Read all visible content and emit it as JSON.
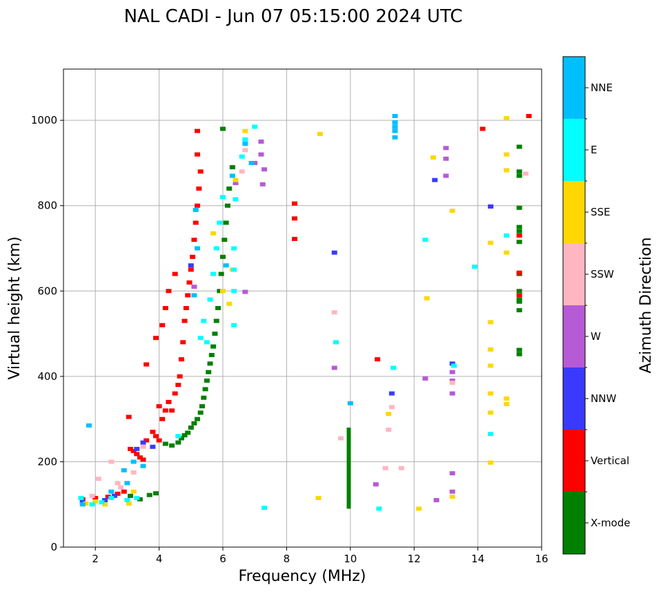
{
  "chart_data": {
    "type": "scatter",
    "title": "NAL CADI - Jun 07 05:15:00 2024 UTC",
    "xlabel": "Frequency (MHz)",
    "ylabel": "Virtual height (km)",
    "xlim": [
      1,
      16
    ],
    "ylim": [
      0,
      1120
    ],
    "xticks": [
      2,
      4,
      6,
      8,
      10,
      12,
      14,
      16
    ],
    "yticks": [
      0,
      200,
      400,
      600,
      800,
      1000
    ],
    "xtick_labels": [
      "2",
      "4",
      "6",
      "8",
      "10",
      "12",
      "14",
      "16"
    ],
    "ytick_labels": [
      "0",
      "200",
      "400",
      "600",
      "800",
      "1000"
    ],
    "grid": true,
    "colorbar": {
      "label": "Azimuth Direction",
      "categories": [
        "X-mode",
        "Vertical",
        "NNW",
        "W",
        "SSW",
        "SSE",
        "E",
        "NNE"
      ],
      "colors": [
        "#008000",
        "#ff0000",
        "#3a3aff",
        "#b65ad6",
        "#ffb6c1",
        "#ffd700",
        "#00ffff",
        "#00bfff"
      ]
    },
    "series": [
      {
        "name": "X-mode",
        "color": "#008000",
        "points": [
          [
            3.1,
            120
          ],
          [
            3.4,
            112
          ],
          [
            3.7,
            122
          ],
          [
            3.9,
            126
          ],
          [
            4.2,
            242
          ],
          [
            4.4,
            238
          ],
          [
            4.6,
            245
          ],
          [
            4.7,
            255
          ],
          [
            4.8,
            262
          ],
          [
            4.9,
            268
          ],
          [
            5.0,
            280
          ],
          [
            5.1,
            290
          ],
          [
            5.2,
            300
          ],
          [
            5.3,
            315
          ],
          [
            5.35,
            330
          ],
          [
            5.4,
            350
          ],
          [
            5.45,
            370
          ],
          [
            5.5,
            390
          ],
          [
            5.55,
            410
          ],
          [
            5.6,
            430
          ],
          [
            5.65,
            450
          ],
          [
            5.7,
            470
          ],
          [
            5.75,
            500
          ],
          [
            5.8,
            530
          ],
          [
            5.85,
            560
          ],
          [
            5.9,
            600
          ],
          [
            5.95,
            640
          ],
          [
            6.0,
            680
          ],
          [
            6.05,
            720
          ],
          [
            6.1,
            760
          ],
          [
            6.15,
            800
          ],
          [
            6.2,
            840
          ],
          [
            6.0,
            980
          ],
          [
            6.3,
            890
          ],
          [
            15.3,
            870
          ],
          [
            15.3,
            880
          ],
          [
            15.3,
            795
          ],
          [
            15.3,
            750
          ],
          [
            15.3,
            740
          ],
          [
            15.3,
            715
          ],
          [
            15.3,
            640
          ],
          [
            15.3,
            600
          ],
          [
            15.3,
            580
          ],
          [
            15.3,
            575
          ],
          [
            15.3,
            555
          ],
          [
            15.3,
            462
          ],
          [
            15.3,
            452
          ],
          [
            15.3,
            938
          ]
        ]
      },
      {
        "name": "Vertical",
        "color": "#ff0000",
        "points": [
          [
            1.6,
            112
          ],
          [
            2.0,
            115
          ],
          [
            2.4,
            118
          ],
          [
            2.7,
            125
          ],
          [
            2.9,
            130
          ],
          [
            3.05,
            305
          ],
          [
            3.1,
            230
          ],
          [
            3.2,
            225
          ],
          [
            3.3,
            218
          ],
          [
            3.4,
            210
          ],
          [
            3.5,
            205
          ],
          [
            3.6,
            250
          ],
          [
            3.8,
            270
          ],
          [
            3.9,
            260
          ],
          [
            4.0,
            250
          ],
          [
            4.0,
            330
          ],
          [
            4.1,
            300
          ],
          [
            4.2,
            320
          ],
          [
            4.3,
            340
          ],
          [
            4.4,
            320
          ],
          [
            4.5,
            360
          ],
          [
            4.6,
            380
          ],
          [
            4.65,
            400
          ],
          [
            4.7,
            440
          ],
          [
            4.75,
            480
          ],
          [
            4.8,
            530
          ],
          [
            4.85,
            560
          ],
          [
            4.9,
            590
          ],
          [
            4.95,
            620
          ],
          [
            5.0,
            650
          ],
          [
            5.05,
            680
          ],
          [
            5.1,
            720
          ],
          [
            5.15,
            760
          ],
          [
            5.2,
            800
          ],
          [
            5.25,
            840
          ],
          [
            5.3,
            880
          ],
          [
            5.2,
            920
          ],
          [
            5.2,
            975
          ],
          [
            3.9,
            490
          ],
          [
            4.1,
            520
          ],
          [
            4.2,
            560
          ],
          [
            4.3,
            600
          ],
          [
            3.6,
            428
          ],
          [
            4.5,
            640
          ],
          [
            8.25,
            805
          ],
          [
            8.25,
            770
          ],
          [
            8.25,
            722
          ],
          [
            10.85,
            440
          ],
          [
            12.7,
            110
          ],
          [
            14.15,
            980
          ],
          [
            15.6,
            1010
          ],
          [
            15.3,
            730
          ],
          [
            15.3,
            643
          ],
          [
            15.3,
            590
          ]
        ]
      },
      {
        "name": "NNW",
        "color": "#3a3aff",
        "points": [
          [
            1.6,
            105
          ],
          [
            2.3,
            110
          ],
          [
            2.6,
            120
          ],
          [
            3.3,
            230
          ],
          [
            3.5,
            245
          ],
          [
            3.8,
            235
          ],
          [
            5.0,
            660
          ],
          [
            9.5,
            690
          ],
          [
            11.3,
            360
          ],
          [
            12.65,
            860
          ],
          [
            14.4,
            798
          ],
          [
            13.2,
            430
          ]
        ]
      },
      {
        "name": "W",
        "color": "#b65ad6",
        "points": [
          [
            5.1,
            610
          ],
          [
            6.4,
            853
          ],
          [
            6.7,
            598
          ],
          [
            7.0,
            900
          ],
          [
            7.2,
            920
          ],
          [
            7.25,
            850
          ],
          [
            7.3,
            885
          ],
          [
            7.2,
            950
          ],
          [
            9.5,
            420
          ],
          [
            10.8,
            147
          ],
          [
            12.35,
            395
          ],
          [
            13.0,
            935
          ],
          [
            13.0,
            910
          ],
          [
            13.0,
            870
          ],
          [
            13.2,
            390
          ],
          [
            13.2,
            410
          ],
          [
            13.2,
            360
          ],
          [
            13.2,
            173
          ],
          [
            13.2,
            130
          ],
          [
            12.7,
            110
          ]
        ]
      },
      {
        "name": "SSW",
        "color": "#ffb6c1",
        "points": [
          [
            1.9,
            120
          ],
          [
            2.1,
            160
          ],
          [
            2.5,
            200
          ],
          [
            2.7,
            150
          ],
          [
            2.8,
            140
          ],
          [
            3.2,
            175
          ],
          [
            3.5,
            235
          ],
          [
            6.6,
            880
          ],
          [
            6.7,
            930
          ],
          [
            9.5,
            550
          ],
          [
            9.7,
            255
          ],
          [
            11.1,
            185
          ],
          [
            11.2,
            275
          ],
          [
            11.3,
            328
          ],
          [
            11.6,
            185
          ],
          [
            13.2,
            385
          ],
          [
            15.5,
            875
          ]
        ]
      },
      {
        "name": "SSE",
        "color": "#ffd700",
        "points": [
          [
            1.7,
            102
          ],
          [
            2.0,
            107
          ],
          [
            2.3,
            100
          ],
          [
            3.05,
            102
          ],
          [
            3.2,
            130
          ],
          [
            5.7,
            735
          ],
          [
            6.0,
            600
          ],
          [
            6.2,
            570
          ],
          [
            6.3,
            650
          ],
          [
            6.4,
            860
          ],
          [
            6.7,
            975
          ],
          [
            9.05,
            968
          ],
          [
            9.0,
            115
          ],
          [
            11.2,
            312
          ],
          [
            12.15,
            90
          ],
          [
            12.4,
            583
          ],
          [
            12.6,
            913
          ],
          [
            13.2,
            788
          ],
          [
            13.2,
            118
          ],
          [
            14.4,
            713
          ],
          [
            14.4,
            527
          ],
          [
            14.4,
            463
          ],
          [
            14.4,
            425
          ],
          [
            14.4,
            360
          ],
          [
            14.4,
            315
          ],
          [
            14.4,
            198
          ],
          [
            14.9,
            1005
          ],
          [
            14.9,
            920
          ],
          [
            14.9,
            883
          ],
          [
            14.9,
            690
          ],
          [
            14.9,
            348
          ],
          [
            14.9,
            335
          ]
        ]
      },
      {
        "name": "E",
        "color": "#00ffff",
        "points": [
          [
            1.55,
            115
          ],
          [
            1.9,
            100
          ],
          [
            2.2,
            105
          ],
          [
            2.5,
            115
          ],
          [
            3.0,
            110
          ],
          [
            3.3,
            115
          ],
          [
            4.6,
            260
          ],
          [
            5.3,
            490
          ],
          [
            5.4,
            530
          ],
          [
            5.5,
            480
          ],
          [
            5.6,
            580
          ],
          [
            5.7,
            640
          ],
          [
            5.8,
            700
          ],
          [
            5.9,
            760
          ],
          [
            6.0,
            820
          ],
          [
            6.35,
            700
          ],
          [
            6.35,
            650
          ],
          [
            6.35,
            600
          ],
          [
            6.35,
            520
          ],
          [
            6.4,
            815
          ],
          [
            6.6,
            915
          ],
          [
            6.7,
            955
          ],
          [
            7.0,
            985
          ],
          [
            7.3,
            92
          ],
          [
            9.55,
            480
          ],
          [
            10.9,
            90
          ],
          [
            11.35,
            420
          ],
          [
            12.35,
            720
          ],
          [
            13.25,
            425
          ],
          [
            13.9,
            657
          ],
          [
            14.4,
            265
          ],
          [
            14.9,
            730
          ]
        ]
      },
      {
        "name": "NNE",
        "color": "#00bfff",
        "points": [
          [
            1.6,
            100
          ],
          [
            1.8,
            285
          ],
          [
            2.5,
            130
          ],
          [
            2.9,
            180
          ],
          [
            3.0,
            150
          ],
          [
            3.2,
            200
          ],
          [
            3.5,
            190
          ],
          [
            5.1,
            590
          ],
          [
            5.15,
            790
          ],
          [
            5.2,
            700
          ],
          [
            6.1,
            660
          ],
          [
            6.3,
            870
          ],
          [
            6.7,
            945
          ],
          [
            6.9,
            900
          ],
          [
            10.0,
            337
          ],
          [
            11.4,
            1010
          ],
          [
            11.4,
            995
          ],
          [
            11.4,
            985
          ],
          [
            11.4,
            975
          ],
          [
            11.4,
            960
          ]
        ]
      }
    ],
    "vertical_bars": [
      {
        "name": "X-mode",
        "x": 9.95,
        "y_range": [
          90,
          280
        ],
        "color": "#008000"
      }
    ]
  }
}
